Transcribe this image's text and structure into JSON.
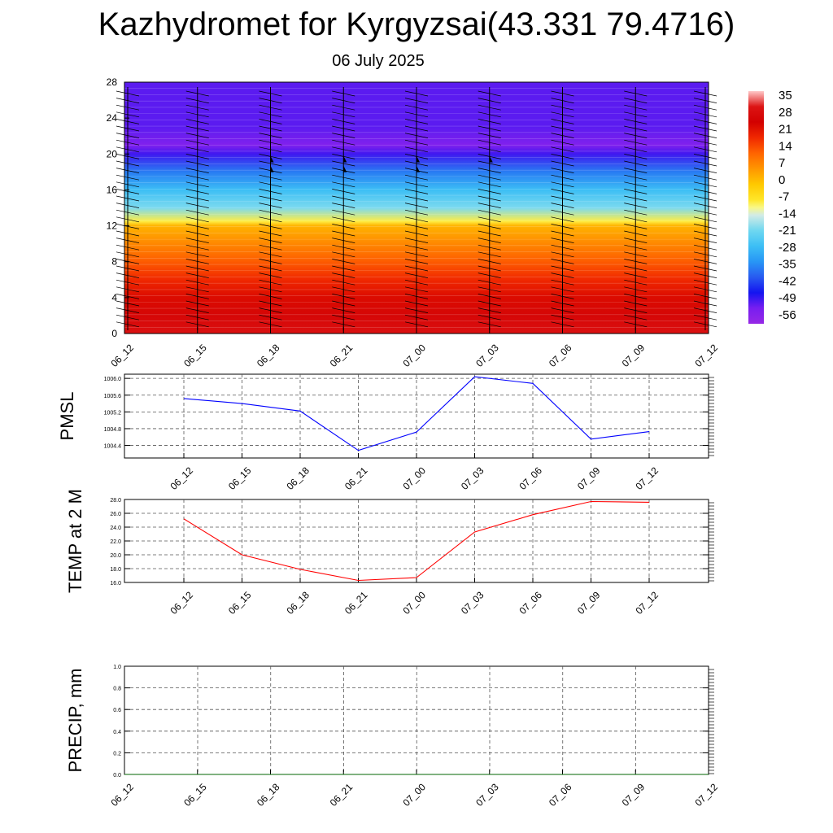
{
  "title": "Kazhydromet for Kyrgyzsai(43.331 79.4716)",
  "subtitle": "06 July 2025",
  "chart_data": [
    {
      "type": "heatmap",
      "title": "",
      "time_labels": [
        "06_12",
        "06_15",
        "06_18",
        "06_21",
        "07_00",
        "07_03",
        "07_06",
        "07_09",
        "07_12"
      ],
      "y_ticks": [
        0,
        4,
        8,
        12,
        16,
        20,
        24,
        28
      ],
      "ylim": [
        0,
        28
      ],
      "colorbar_labels": [
        "35",
        "28",
        "21",
        "14",
        "7",
        "0",
        "-7",
        "-14",
        "-21",
        "-28",
        "-35",
        "-42",
        "-49",
        "-56"
      ],
      "colorbar_range": [
        -63,
        42
      ],
      "profile": [
        {
          "y": 0,
          "value": 34
        },
        {
          "y": 2,
          "value": 30
        },
        {
          "y": 4,
          "value": 26
        },
        {
          "y": 6,
          "value": 21
        },
        {
          "y": 8,
          "value": 15
        },
        {
          "y": 10,
          "value": 9
        },
        {
          "y": 12,
          "value": 3
        },
        {
          "y": 12.5,
          "value": -8
        },
        {
          "y": 14,
          "value": -20
        },
        {
          "y": 16,
          "value": -28
        },
        {
          "y": 18,
          "value": -38
        },
        {
          "y": 20,
          "value": -52
        },
        {
          "y": 21,
          "value": -58
        },
        {
          "y": 23,
          "value": -54
        },
        {
          "y": 28,
          "value": -54
        }
      ],
      "grid": false
    },
    {
      "type": "line",
      "ylabel": "PMSL",
      "x": [
        "06_12",
        "06_15",
        "06_18",
        "06_21",
        "07_00",
        "07_03",
        "07_06",
        "07_09",
        "07_12"
      ],
      "series": [
        {
          "values": [
            1005.52,
            1005.4,
            1005.22,
            1004.28,
            1004.72,
            1006.04,
            1005.88,
            1004.55,
            1004.73
          ],
          "color": "#0000ff"
        }
      ],
      "y_ticks": [
        "1004.4",
        "1004.8",
        "1005.2",
        "1005.6",
        "1006.0"
      ],
      "ylim": [
        1004.1,
        1006.1
      ],
      "grid": true
    },
    {
      "type": "line",
      "ylabel": "TEMP at 2 M",
      "x": [
        "06_12",
        "06_15",
        "06_18",
        "06_21",
        "07_00",
        "07_03",
        "07_06",
        "07_09",
        "07_12"
      ],
      "series": [
        {
          "values": [
            25.2,
            20.0,
            17.9,
            16.3,
            16.7,
            23.3,
            25.8,
            27.7,
            27.6
          ],
          "color": "#ff0000"
        }
      ],
      "y_ticks": [
        "16.0",
        "18.0",
        "20.0",
        "22.0",
        "24.0",
        "26.0",
        "28.0"
      ],
      "ylim": [
        16,
        28
      ],
      "grid": true
    },
    {
      "type": "line",
      "ylabel": "PRECIP, mm",
      "x": [
        "06_12",
        "06_15",
        "06_18",
        "06_21",
        "07_00",
        "07_03",
        "07_06",
        "07_09",
        "07_12"
      ],
      "series": [
        {
          "values": [
            0,
            0,
            0,
            0,
            0,
            0,
            0,
            0,
            0
          ],
          "color": "#006400"
        }
      ],
      "y_ticks": [
        "0.0",
        "0.2",
        "0.4",
        "0.6",
        "0.8",
        "1.0"
      ],
      "ylim": [
        0,
        1
      ],
      "grid": true
    }
  ]
}
